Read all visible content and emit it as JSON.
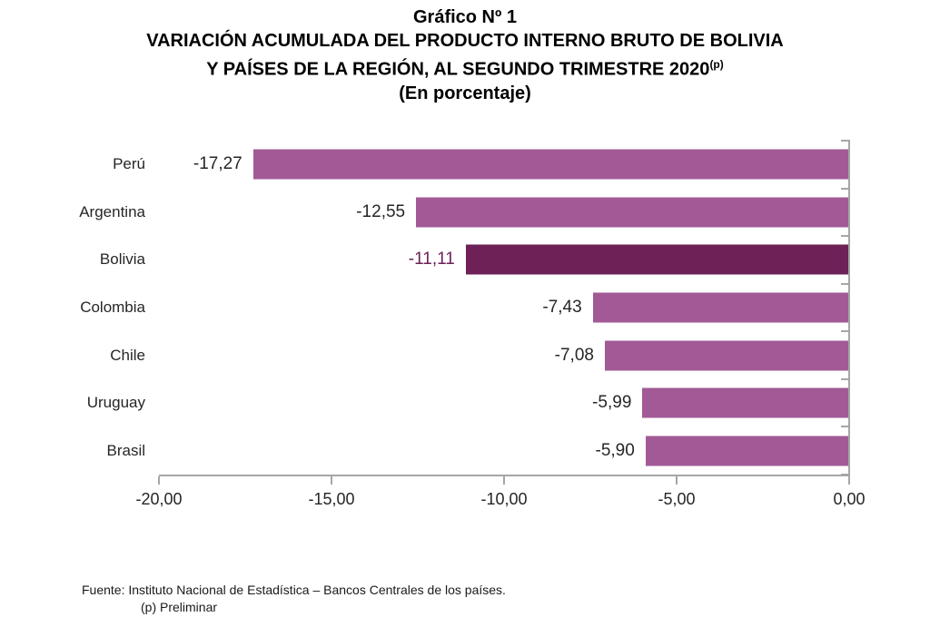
{
  "title": {
    "line1": "Gráfico Nº 1",
    "line2": "VARIACIÓN ACUMULADA DEL PRODUCTO INTERNO BRUTO DE BOLIVIA",
    "line3": "Y PAÍSES DE LA REGIÓN, AL SEGUNDO TRIMESTRE 2020",
    "line3_sup": "(p)",
    "line4": "(En porcentaje)"
  },
  "footer": {
    "source": "Fuente: Instituto Nacional de Estadística – Bancos Centrales de los países.",
    "note": "(p) Preliminar"
  },
  "chart_data": {
    "type": "bar",
    "orientation": "horizontal",
    "title": "Gráfico Nº 1 — VARIACIÓN ACUMULADA DEL PRODUCTO INTERNO BRUTO DE BOLIVIA Y PAÍSES DE LA REGIÓN, AL SEGUNDO TRIMESTRE 2020(p)",
    "subtitle": "(En porcentaje)",
    "categories": [
      "Perú",
      "Argentina",
      "Bolivia",
      "Colombia",
      "Chile",
      "Uruguay",
      "Brasil"
    ],
    "values": [
      -17.27,
      -12.55,
      -11.11,
      -7.43,
      -7.08,
      -5.99,
      -5.9
    ],
    "value_labels": [
      "-17,27",
      "-12,55",
      "-11,11",
      "-7,43",
      "-7,08",
      "-5,99",
      "-5,90"
    ],
    "highlight_category": "Bolivia",
    "bar_color": "#A15A96",
    "highlight_color": "#6D2157",
    "axis_color": "#a6a6a6",
    "text_color": "#262626",
    "xlim": [
      -20,
      0
    ],
    "x_ticks": {
      "values": [
        -20,
        -15,
        -10,
        -5,
        0
      ],
      "labels": [
        "-20,00",
        "-15,00",
        "-10,00",
        "-5,00",
        "0,00"
      ]
    },
    "grid": false,
    "legend": "none",
    "xlabel": "",
    "ylabel": ""
  }
}
